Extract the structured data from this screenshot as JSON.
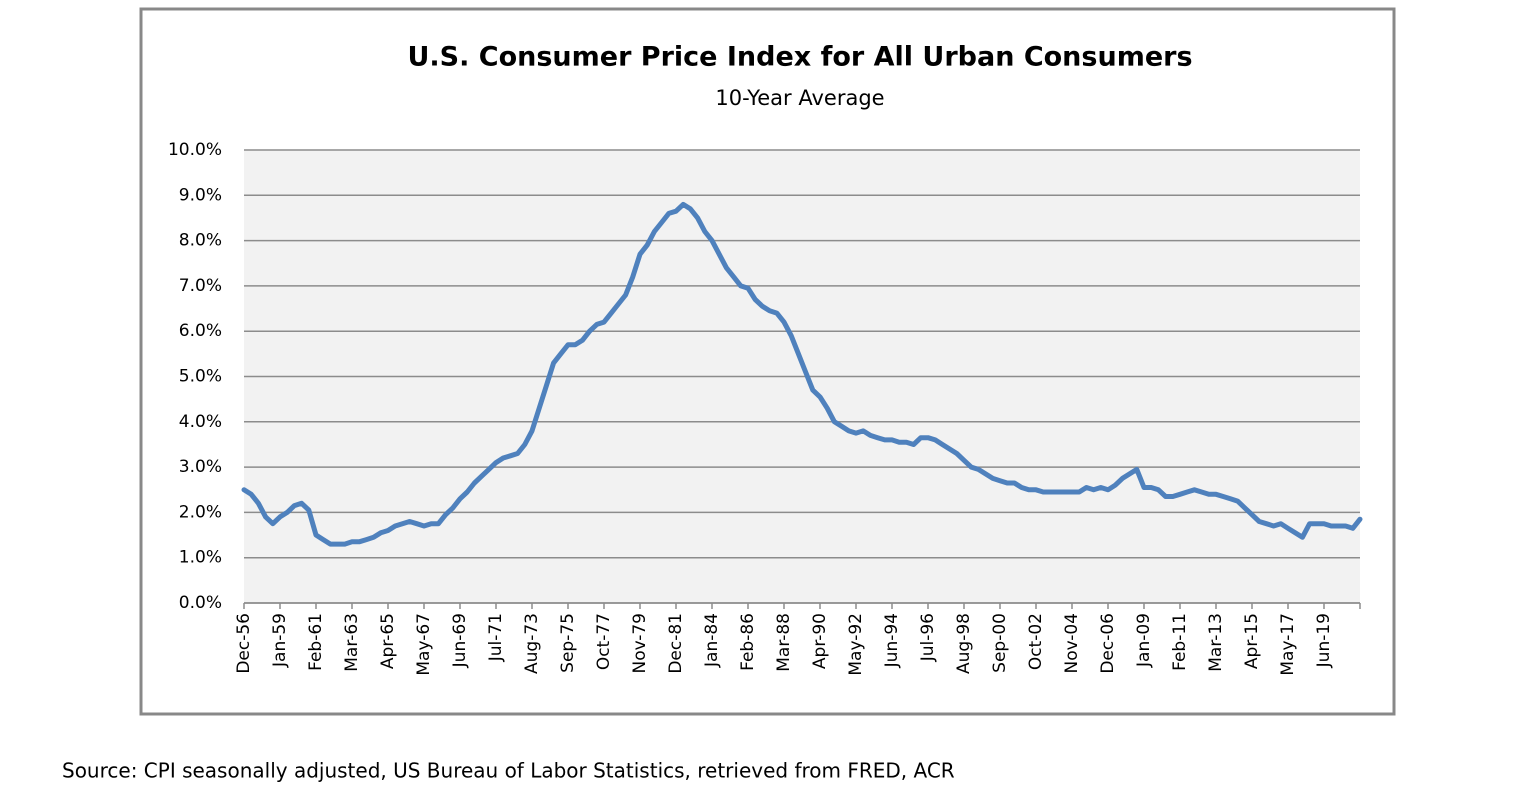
{
  "chart_data": {
    "type": "line",
    "title": "U.S. Consumer Price Index for All Urban Consumers",
    "subtitle": "10-Year Average",
    "categories": [
      "Dec-56",
      null,
      null,
      null,
      null,
      "Jan-59",
      null,
      null,
      null,
      null,
      "Feb-61",
      null,
      null,
      null,
      null,
      "Mar-63",
      null,
      null,
      null,
      null,
      "Apr-65",
      null,
      null,
      null,
      null,
      "May-67",
      null,
      null,
      null,
      null,
      "Jun-69",
      null,
      null,
      null,
      null,
      "Jul-71",
      null,
      null,
      null,
      null,
      "Aug-73",
      null,
      null,
      null,
      null,
      "Sep-75",
      null,
      null,
      null,
      null,
      "Oct-77",
      null,
      null,
      null,
      null,
      "Nov-79",
      null,
      null,
      null,
      null,
      "Dec-81",
      null,
      null,
      null,
      null,
      "Jan-84",
      null,
      null,
      null,
      null,
      "Feb-86",
      null,
      null,
      null,
      null,
      "Mar-88",
      null,
      null,
      null,
      null,
      "Apr-90",
      null,
      null,
      null,
      null,
      "May-92",
      null,
      null,
      null,
      null,
      "Jun-94",
      null,
      null,
      null,
      null,
      "Jul-96",
      null,
      null,
      null,
      null,
      "Aug-98",
      null,
      null,
      null,
      null,
      "Sep-00",
      null,
      null,
      null,
      null,
      "Oct-02",
      null,
      null,
      null,
      null,
      "Nov-04",
      null,
      null,
      null,
      null,
      "Dec-06",
      null,
      null,
      null,
      null,
      "Jan-09",
      null,
      null,
      null,
      null,
      "Feb-11",
      null,
      null,
      null,
      null,
      "Mar-13",
      null,
      null,
      null,
      null,
      "Apr-15",
      null,
      null,
      null,
      null,
      "May-17",
      null,
      null,
      null,
      null,
      "Jun-19",
      null,
      null,
      null,
      null,
      null
    ],
    "series": [
      {
        "color": "#4f81bd",
        "values": [
          2.5,
          2.4,
          2.2,
          1.9,
          1.75,
          1.9,
          2.0,
          2.15,
          2.2,
          2.05,
          1.5,
          1.4,
          1.3,
          1.3,
          1.3,
          1.35,
          1.35,
          1.4,
          1.45,
          1.55,
          1.6,
          1.7,
          1.75,
          1.8,
          1.75,
          1.7,
          1.75,
          1.75,
          1.95,
          2.1,
          2.3,
          2.45,
          2.65,
          2.8,
          2.95,
          3.1,
          3.2,
          3.25,
          3.3,
          3.5,
          3.8,
          4.3,
          4.8,
          5.3,
          5.5,
          5.7,
          5.7,
          5.8,
          6.0,
          6.15,
          6.2,
          6.4,
          6.6,
          6.8,
          7.2,
          7.7,
          7.9,
          8.2,
          8.4,
          8.6,
          8.65,
          8.8,
          8.7,
          8.5,
          8.2,
          8.0,
          7.7,
          7.4,
          7.2,
          7.0,
          6.95,
          6.7,
          6.55,
          6.45,
          6.4,
          6.2,
          5.9,
          5.5,
          5.1,
          4.7,
          4.55,
          4.3,
          4.0,
          3.9,
          3.8,
          3.75,
          3.8,
          3.7,
          3.65,
          3.6,
          3.6,
          3.55,
          3.55,
          3.5,
          3.65,
          3.65,
          3.6,
          3.5,
          3.4,
          3.3,
          3.15,
          3.0,
          2.95,
          2.85,
          2.75,
          2.7,
          2.65,
          2.65,
          2.55,
          2.5,
          2.5,
          2.45,
          2.45,
          2.45,
          2.45,
          2.45,
          2.45,
          2.55,
          2.5,
          2.55,
          2.5,
          2.6,
          2.75,
          2.85,
          2.95,
          2.55,
          2.55,
          2.5,
          2.35,
          2.35,
          2.4,
          2.45,
          2.5,
          2.45,
          2.4,
          2.4,
          2.35,
          2.3,
          2.25,
          2.1,
          1.95,
          1.8,
          1.75,
          1.7,
          1.75,
          1.65,
          1.55,
          1.45,
          1.75,
          1.75,
          1.75,
          1.7,
          1.7,
          1.7,
          1.65,
          1.85
        ]
      }
    ],
    "ylim": [
      0,
      10
    ],
    "yticks": [
      {
        "value": 0,
        "label": "0.0%"
      },
      {
        "value": 1,
        "label": "1.0%"
      },
      {
        "value": 2,
        "label": "2.0%"
      },
      {
        "value": 3,
        "label": "3.0%"
      },
      {
        "value": 4,
        "label": "4.0%"
      },
      {
        "value": 5,
        "label": "5.0%"
      },
      {
        "value": 6,
        "label": "6.0%"
      },
      {
        "value": 7,
        "label": "7.0%"
      },
      {
        "value": 8,
        "label": "8.0%"
      },
      {
        "value": 9,
        "label": "9.0%"
      },
      {
        "value": 10,
        "label": "10.0%"
      }
    ],
    "grid": true
  },
  "source": "Source: CPI seasonally adjusted, US Bureau of Labor Statistics, retrieved from FRED, ACR"
}
